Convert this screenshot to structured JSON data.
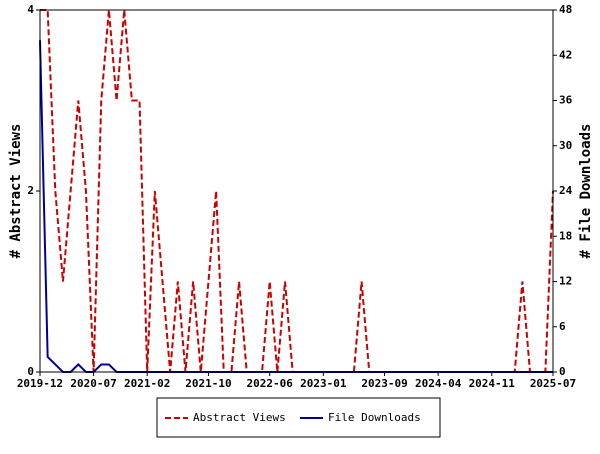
{
  "chart_data": {
    "type": "line",
    "ylabel": "# Abstract Views",
    "y2label": "# File Downloads",
    "categories": [
      "2019-12",
      null,
      null,
      null,
      null,
      null,
      null,
      "2020-07",
      null,
      null,
      null,
      null,
      null,
      null,
      "2021-02",
      null,
      null,
      null,
      null,
      null,
      null,
      null,
      "2021-10",
      null,
      null,
      null,
      null,
      null,
      null,
      null,
      "2022-06",
      null,
      null,
      null,
      null,
      null,
      null,
      "2023-01",
      null,
      null,
      null,
      null,
      null,
      null,
      null,
      "2023-09",
      null,
      null,
      null,
      null,
      null,
      null,
      "2024-04",
      null,
      null,
      null,
      null,
      null,
      null,
      "2024-11",
      null,
      null,
      null,
      null,
      null,
      null,
      null,
      "2025-07"
    ],
    "series": [
      {
        "name": "Abstract Views",
        "color": "#cc0000",
        "dashed": true,
        "values": [
          4,
          4,
          2,
          1,
          2,
          3,
          2,
          0,
          3,
          4,
          3,
          4,
          3,
          3,
          0,
          2,
          1,
          0,
          1,
          0,
          1,
          0,
          1,
          2,
          0,
          0,
          1,
          0,
          0,
          0,
          1,
          0,
          1,
          0,
          0,
          0,
          0,
          0,
          0,
          0,
          0,
          0,
          1,
          0,
          0,
          0,
          0,
          0,
          0,
          0,
          0,
          0,
          0,
          0,
          0,
          0,
          0,
          0,
          0,
          0,
          0,
          0,
          0,
          1,
          0,
          0,
          0,
          2
        ]
      },
      {
        "name": "File Downloads",
        "color": "#000099",
        "axis": "y2",
        "values": [
          44,
          2,
          1,
          0,
          0,
          1,
          0,
          0,
          1,
          1,
          0,
          0,
          0,
          0,
          0,
          0,
          0,
          0,
          0,
          0,
          0,
          0,
          0,
          0,
          0,
          0,
          0,
          0,
          0,
          0,
          0,
          0,
          0,
          0,
          0,
          0,
          0,
          0,
          0,
          0,
          0,
          0,
          0,
          0,
          0,
          0,
          0,
          0,
          0,
          0,
          0,
          0,
          0,
          0,
          0,
          0,
          0,
          0,
          0,
          0,
          0,
          0,
          0,
          0,
          0,
          0,
          0,
          0
        ]
      }
    ],
    "ylim": [
      0,
      4
    ],
    "yticks": [
      0,
      2,
      4
    ],
    "y2lim": [
      0,
      48
    ],
    "y2ticks": [
      0,
      6,
      12,
      18,
      24,
      30,
      36,
      42,
      48
    ],
    "legend": "bottom"
  }
}
